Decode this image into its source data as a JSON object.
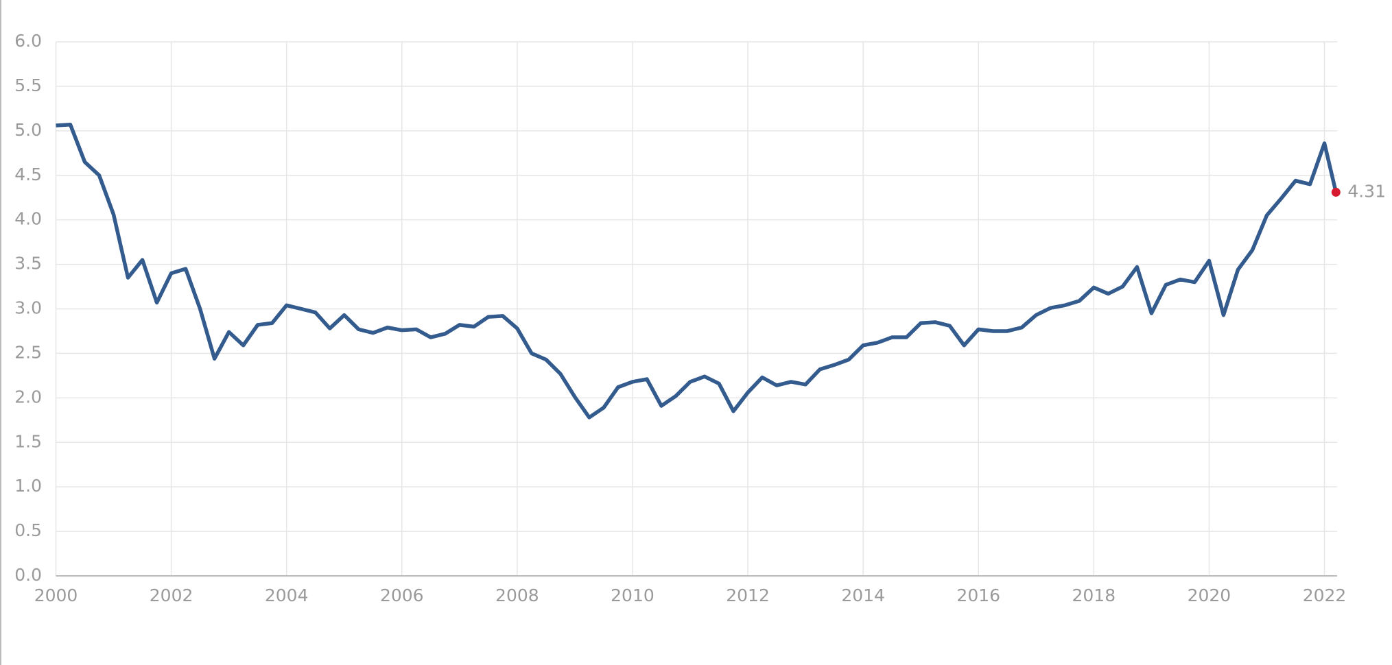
{
  "chart_data": {
    "type": "line",
    "x": [
      2000,
      2000.25,
      2000.5,
      2000.75,
      2001,
      2001.25,
      2001.5,
      2001.75,
      2002,
      2002.25,
      2002.5,
      2002.75,
      2003,
      2003.25,
      2003.5,
      2003.75,
      2004,
      2004.25,
      2004.5,
      2004.75,
      2005,
      2005.25,
      2005.5,
      2005.75,
      2006,
      2006.25,
      2006.5,
      2006.75,
      2007,
      2007.25,
      2007.5,
      2007.75,
      2008,
      2008.25,
      2008.5,
      2008.75,
      2009,
      2009.25,
      2009.5,
      2009.75,
      2010,
      2010.25,
      2010.5,
      2010.75,
      2011,
      2011.25,
      2011.5,
      2011.75,
      2012,
      2012.25,
      2012.5,
      2012.75,
      2013,
      2013.25,
      2013.5,
      2013.75,
      2014,
      2014.25,
      2014.5,
      2014.75,
      2015,
      2015.25,
      2015.5,
      2015.75,
      2016,
      2016.25,
      2016.5,
      2016.75,
      2017,
      2017.25,
      2017.5,
      2017.75,
      2018,
      2018.25,
      2018.5,
      2018.75,
      2019,
      2019.25,
      2019.5,
      2019.75,
      2020,
      2020.25,
      2020.5,
      2020.75,
      2021,
      2021.25,
      2021.5,
      2021.75,
      2022,
      2022.2
    ],
    "values": [
      5.06,
      5.07,
      4.65,
      4.5,
      4.06,
      3.35,
      3.55,
      3.07,
      3.4,
      3.45,
      3.0,
      2.44,
      2.74,
      2.59,
      2.82,
      2.84,
      3.04,
      3.0,
      2.96,
      2.78,
      2.93,
      2.77,
      2.73,
      2.79,
      2.76,
      2.77,
      2.68,
      2.72,
      2.82,
      2.8,
      2.91,
      2.92,
      2.78,
      2.5,
      2.43,
      2.27,
      2.01,
      1.78,
      1.89,
      2.12,
      2.18,
      2.21,
      1.91,
      2.02,
      2.18,
      2.24,
      2.16,
      1.85,
      2.06,
      2.23,
      2.14,
      2.18,
      2.15,
      2.32,
      2.37,
      2.43,
      2.59,
      2.62,
      2.68,
      2.68,
      2.84,
      2.85,
      2.81,
      2.59,
      2.77,
      2.75,
      2.75,
      2.79,
      2.93,
      3.01,
      3.04,
      3.09,
      3.24,
      3.17,
      3.25,
      3.47,
      2.95,
      3.27,
      3.33,
      3.3,
      3.54,
      2.93,
      3.44,
      3.66,
      4.05,
      4.24,
      4.44,
      4.4,
      4.86,
      4.31
    ],
    "color": "#335b8e",
    "end_marker_color": "#d7192f",
    "xlim": [
      2000,
      2022.22
    ],
    "xticks": [
      2000,
      2002,
      2004,
      2006,
      2008,
      2010,
      2012,
      2014,
      2016,
      2018,
      2020,
      2022
    ],
    "ylim": [
      0,
      6
    ],
    "yticks": [
      {
        "value": 0,
        "label": "0.0"
      },
      0.5,
      {
        "value": 1,
        "label": "1.0"
      },
      1.5,
      {
        "value": 2,
        "label": "2.0"
      },
      2.5,
      {
        "value": 3,
        "label": "3.0"
      },
      3.5,
      {
        "value": 4,
        "label": "4.0"
      },
      4.5,
      {
        "value": 5,
        "label": "5.0"
      },
      5.5,
      {
        "value": 6,
        "label": "6.0"
      }
    ],
    "grid": true
  }
}
